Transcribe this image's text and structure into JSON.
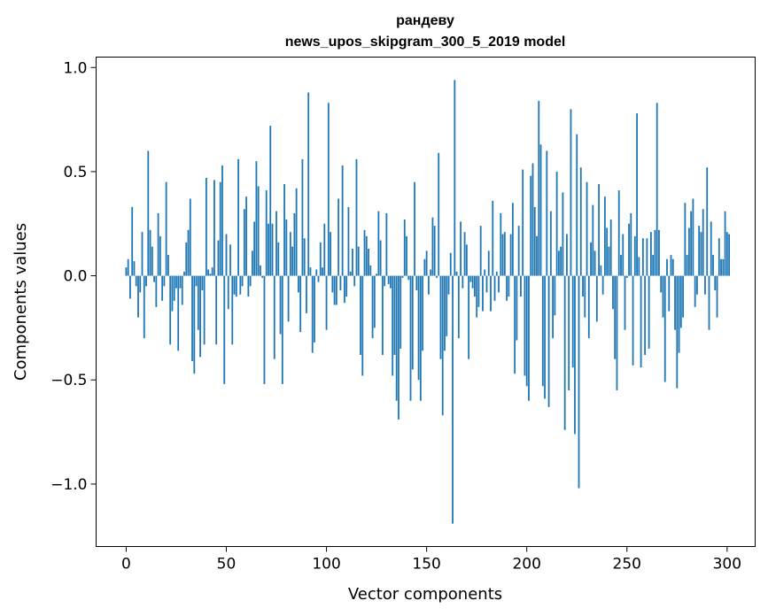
{
  "chart_data": {
    "type": "bar",
    "title_line1": "рандеву",
    "title_line2": "news_upos_skipgram_300_5_2019 model",
    "xlabel": "Vector components",
    "ylabel": "Components values",
    "xlim": [
      -15,
      314
    ],
    "ylim": [
      -1.3,
      1.05
    ],
    "xticks": [
      0,
      50,
      100,
      150,
      200,
      250,
      300
    ],
    "xtick_labels": [
      "0",
      "50",
      "100",
      "150",
      "200",
      "250",
      "300"
    ],
    "yticks": [
      -1.0,
      -0.5,
      0.0,
      0.5,
      1.0
    ],
    "ytick_labels": [
      "−1.0",
      "−0.5",
      "0.0",
      "0.5",
      "1.0"
    ],
    "bar_color": "#1f77b4",
    "grid": false,
    "values": [
      0.04,
      0.08,
      -0.11,
      0.33,
      0.07,
      -0.05,
      -0.2,
      -0.08,
      0.21,
      -0.3,
      -0.05,
      0.6,
      0.22,
      0.14,
      -0.03,
      -0.15,
      0.3,
      0.19,
      -0.12,
      -0.05,
      0.45,
      0.1,
      -0.33,
      -0.17,
      -0.12,
      -0.06,
      -0.36,
      -0.06,
      -0.14,
      0.02,
      0.16,
      0.22,
      0.37,
      -0.41,
      -0.47,
      -0.05,
      -0.26,
      -0.39,
      -0.07,
      -0.33,
      0.47,
      0.03,
      0.01,
      0.04,
      0.46,
      -0.33,
      0.17,
      0.45,
      0.53,
      -0.52,
      0.2,
      -0.16,
      0.15,
      -0.33,
      -0.09,
      -0.1,
      0.56,
      -0.09,
      -0.05,
      0.32,
      0.38,
      -0.1,
      -0.05,
      0.12,
      0.26,
      0.55,
      0.43,
      0.05,
      -0.01,
      -0.52,
      0.41,
      0.25,
      0.72,
      0.25,
      -0.4,
      0.31,
      0.16,
      -0.28,
      -0.52,
      0.44,
      0.27,
      -0.22,
      0.21,
      0.14,
      0.3,
      0.42,
      -0.08,
      -0.27,
      0.56,
      0.18,
      -0.18,
      0.88,
      0.04,
      -0.37,
      -0.32,
      0.03,
      -0.03,
      0.16,
      0.04,
      0.25,
      -0.26,
      0.83,
      0.21,
      -0.08,
      -0.14,
      -0.14,
      0.37,
      -0.07,
      0.53,
      -0.13,
      -0.1,
      0.33,
      0.02,
      0.13,
      -0.05,
      0.56,
      0.14,
      -0.38,
      -0.48,
      0.22,
      0.19,
      0.13,
      0.05,
      -0.3,
      -0.25,
      0.01,
      0.31,
      0.17,
      -0.38,
      -0.05,
      0.3,
      -0.04,
      -0.06,
      -0.48,
      -0.38,
      -0.6,
      -0.69,
      -0.35,
      -0.01,
      0.27,
      0.19,
      -0.02,
      -0.6,
      -0.45,
      0.45,
      -0.07,
      -0.5,
      -0.6,
      -0.36,
      0.08,
      0.12,
      -0.09,
      0.03,
      0.28,
      0.24,
      -0.01,
      0.59,
      -0.4,
      -0.67,
      -0.36,
      -0.29,
      -0.09,
      0.11,
      -1.19,
      0.94,
      0.02,
      -0.3,
      0.26,
      -0.06,
      0.21,
      0.15,
      -0.4,
      -0.03,
      -0.06,
      -0.1,
      -0.2,
      -0.15,
      0.24,
      -0.17,
      0.03,
      -0.08,
      0.12,
      -0.17,
      0.36,
      -0.12,
      0.02,
      -0.08,
      0.3,
      0.2,
      0.21,
      -0.12,
      -0.1,
      0.2,
      0.35,
      -0.47,
      -0.31,
      0.24,
      -0.1,
      0.51,
      -0.48,
      -0.53,
      -0.6,
      0.48,
      0.54,
      0.33,
      0.19,
      0.84,
      0.63,
      -0.53,
      -0.59,
      0.6,
      -0.63,
      0.31,
      -0.3,
      -0.19,
      0.5,
      0.12,
      0.14,
      0.4,
      -0.74,
      0.2,
      -0.55,
      0.8,
      -0.44,
      -0.76,
      0.68,
      -1.02,
      0.52,
      -0.1,
      -0.2,
      0.45,
      -0.3,
      0.16,
      0.34,
      0.12,
      -0.22,
      0.44,
      0.05,
      -0.09,
      0.38,
      0.23,
      0.14,
      0.27,
      -0.16,
      -0.4,
      -0.55,
      0.41,
      0.1,
      0.2,
      -0.26,
      -0.01,
      0.25,
      0.3,
      -0.43,
      0.19,
      0.78,
      0.09,
      -0.44,
      0.18,
      -0.38,
      0.18,
      -0.35,
      0.21,
      0.1,
      0.22,
      0.83,
      0.22,
      -0.08,
      -0.2,
      -0.51,
      0.08,
      -0.17,
      0.1,
      0.08,
      -0.26,
      -0.54,
      -0.37,
      -0.25,
      -0.2,
      0.35,
      0.1,
      0.23,
      0.31,
      0.37,
      -0.15,
      -0.09,
      0.24,
      0.21,
      0.32,
      -0.09,
      0.52,
      -0.26,
      0.26,
      0.1,
      -0.07,
      -0.2,
      0.18,
      0.08,
      0.08,
      0.31,
      0.21,
      0.2
    ]
  }
}
